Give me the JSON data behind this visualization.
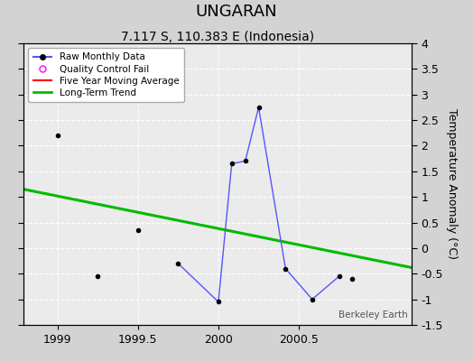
{
  "title": "UNGARAN",
  "subtitle": "7.117 S, 110.383 E (Indonesia)",
  "ylabel": "Temperature Anomaly (°C)",
  "watermark": "Berkeley Earth",
  "xlim": [
    1998.79,
    2001.2
  ],
  "ylim": [
    -1.5,
    4.0
  ],
  "xticks": [
    1999,
    1999.5,
    2000,
    2000.5
  ],
  "xtick_labels": [
    "1999",
    "1999.5",
    "2000",
    "2000.5"
  ],
  "yticks": [
    -1.5,
    -1.0,
    -0.5,
    0.0,
    0.5,
    1.0,
    1.5,
    2.0,
    2.5,
    3.0,
    3.5,
    4.0
  ],
  "ytick_labels": [
    "-1.5",
    "-1",
    "-0.5",
    "0",
    "0.5",
    "1",
    "1.5",
    "2",
    "2.5",
    "3",
    "3.5",
    "4"
  ],
  "background_color": "#d3d3d3",
  "plot_bg_color": "#ebebeb",
  "raw_data_x": [
    1999.0,
    1999.25,
    1999.5,
    1999.75,
    2000.0,
    2000.083,
    2000.167,
    2000.25,
    2000.417,
    2000.583,
    2000.75,
    2000.83
  ],
  "raw_data_y": [
    2.2,
    -0.55,
    0.35,
    -0.3,
    -1.05,
    1.65,
    1.7,
    2.75,
    -0.4,
    -1.0,
    -0.55,
    -0.6
  ],
  "connected_x": [
    1999.75,
    2000.0,
    2000.083,
    2000.167,
    2000.25,
    2000.417,
    2000.583,
    2000.75
  ],
  "connected_y": [
    -0.3,
    -1.05,
    1.65,
    1.7,
    2.75,
    -0.4,
    -1.0,
    -0.55
  ],
  "trend_x": [
    1998.79,
    2001.2
  ],
  "trend_y": [
    1.15,
    -0.38
  ],
  "line_color": "#5555ff",
  "dot_color": "#000000",
  "trend_color": "#00bb00",
  "mavg_color": "#ff0000",
  "title_fontsize": 13,
  "subtitle_fontsize": 10,
  "ylabel_fontsize": 9,
  "tick_fontsize": 9
}
